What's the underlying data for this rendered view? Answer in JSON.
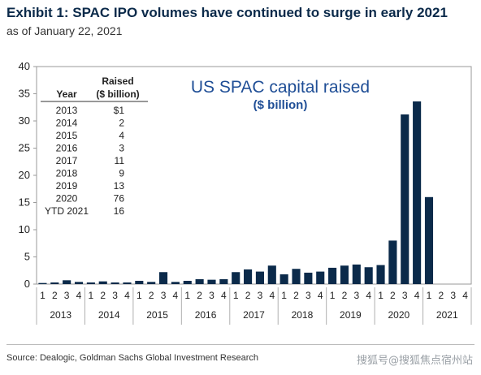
{
  "header": {
    "title": "Exhibit 1: SPAC IPO volumes have continued to surge in early 2021",
    "subtitle": "as of January 22, 2021"
  },
  "footer": {
    "source": "Source: Dealogic, Goldman Sachs Global Investment Research",
    "watermark": "搜狐号@搜狐焦点宿州站"
  },
  "colors": {
    "bar": "#0b2a4a",
    "title": "#0b2a4a",
    "inner_title": "#1f4e96"
  },
  "chart_data": {
    "type": "bar",
    "title": "US SPAC capital raised",
    "subtitle": "($ billion)",
    "ylim": [
      0,
      40
    ],
    "yticks": [
      0,
      5,
      10,
      15,
      20,
      25,
      30,
      35,
      40
    ],
    "grid": false,
    "quarters": [
      "1",
      "2",
      "3",
      "4"
    ],
    "years": [
      "2013",
      "2014",
      "2015",
      "2016",
      "2017",
      "2018",
      "2019",
      "2020",
      "2021"
    ],
    "values": [
      0.2,
      0.3,
      0.7,
      0.4,
      0.3,
      0.5,
      0.3,
      0.3,
      0.6,
      0.4,
      2.2,
      0.4,
      0.6,
      0.9,
      0.8,
      0.9,
      2.2,
      2.7,
      2.3,
      3.4,
      1.8,
      2.8,
      2.1,
      2.3,
      3.0,
      3.4,
      3.6,
      3.1,
      3.5,
      8.0,
      31.2,
      33.6,
      16.0,
      0,
      0,
      0
    ],
    "table": {
      "headers": [
        "Year",
        "Raised",
        "($ billion)"
      ],
      "rows": [
        [
          "2013",
          "$1"
        ],
        [
          "2014",
          "2"
        ],
        [
          "2015",
          "4"
        ],
        [
          "2016",
          "3"
        ],
        [
          "2017",
          "11"
        ],
        [
          "2018",
          "9"
        ],
        [
          "2019",
          "13"
        ],
        [
          "2020",
          "76"
        ],
        [
          "YTD 2021",
          "16"
        ]
      ]
    }
  }
}
